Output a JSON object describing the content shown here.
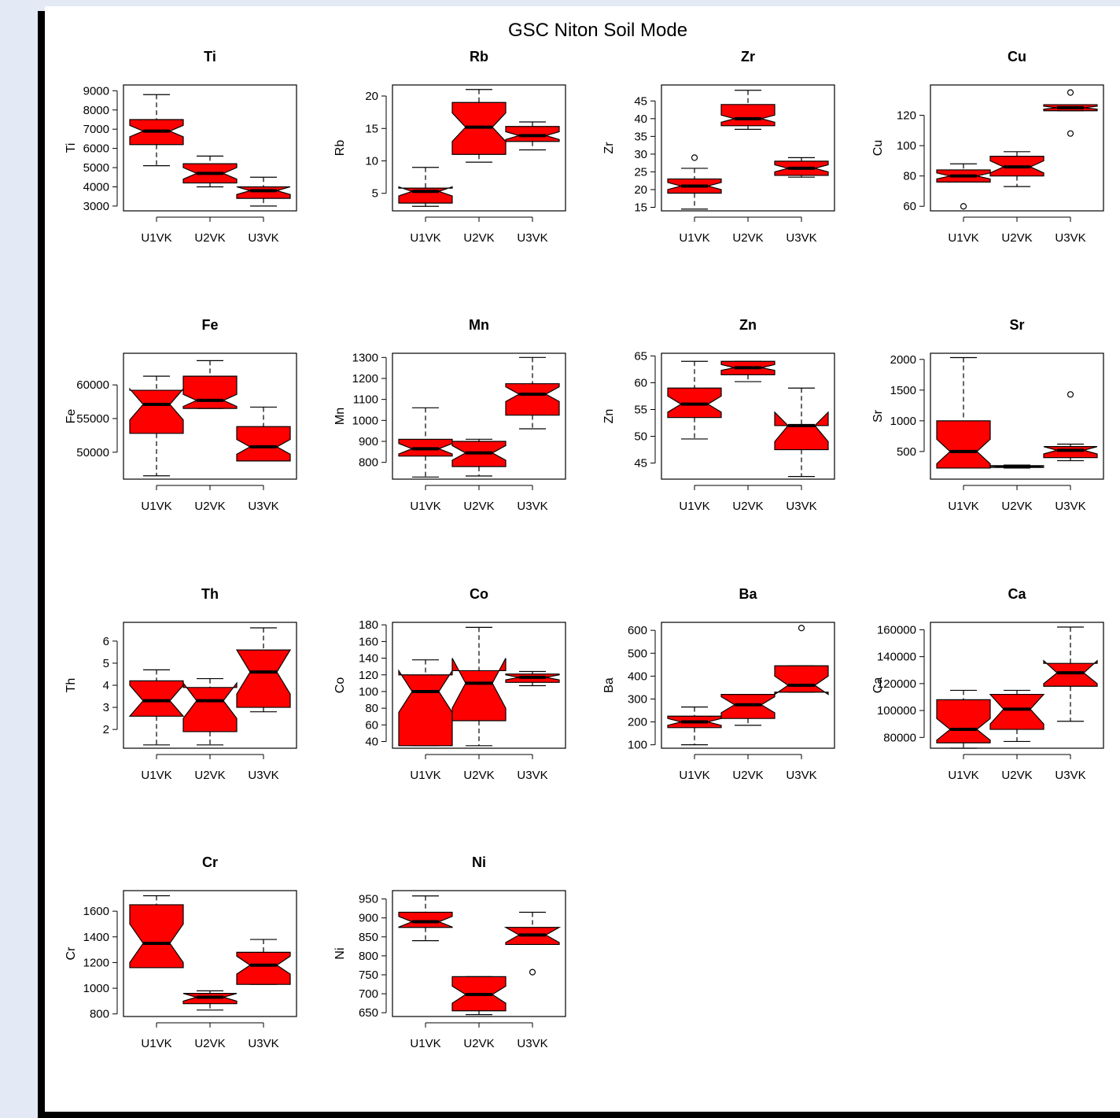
{
  "title": "GSC Niton Soil Mode",
  "box_fill": "#ff0000",
  "chart_data": [
    {
      "type": "boxplot",
      "title": "Ti",
      "ylabel": "Ti",
      "categories": [
        "U1VK",
        "U2VK",
        "U3VK"
      ],
      "ylim": [
        2750,
        9300
      ],
      "yticks": [
        3000,
        4000,
        5000,
        6000,
        7000,
        8000,
        9000
      ],
      "boxes": [
        {
          "min": 5100,
          "q1": 6200,
          "median": 6900,
          "q3": 7500,
          "max": 8800,
          "notch": [
            6600,
            7200
          ],
          "outliers": []
        },
        {
          "min": 4000,
          "q1": 4200,
          "median": 4700,
          "q3": 5200,
          "max": 5600,
          "notch": [
            4400,
            5000
          ],
          "outliers": []
        },
        {
          "min": 3000,
          "q1": 3400,
          "median": 3800,
          "q3": 4000,
          "max": 4500,
          "notch": [
            3600,
            4000
          ],
          "outliers": []
        }
      ]
    },
    {
      "type": "boxplot",
      "title": "Rb",
      "ylabel": "Rb",
      "categories": [
        "U1VK",
        "U2VK",
        "U3VK"
      ],
      "ylim": [
        2.3,
        21.7
      ],
      "yticks": [
        5,
        10,
        15,
        20
      ],
      "boxes": [
        {
          "min": 3,
          "q1": 3.5,
          "median": 5.3,
          "q3": 5.8,
          "max": 9,
          "notch": [
            4.6,
            6.0
          ],
          "outliers": []
        },
        {
          "min": 9.8,
          "q1": 11,
          "median": 15.2,
          "q3": 19,
          "max": 21,
          "notch": [
            13,
            17.4
          ],
          "outliers": []
        },
        {
          "min": 11.7,
          "q1": 13,
          "median": 13.9,
          "q3": 15.3,
          "max": 16,
          "notch": [
            13.3,
            14.5
          ],
          "outliers": []
        }
      ]
    },
    {
      "type": "boxplot",
      "title": "Zr",
      "ylabel": "Zr",
      "categories": [
        "U1VK",
        "U2VK",
        "U3VK"
      ],
      "ylim": [
        14,
        49.5
      ],
      "yticks": [
        15,
        20,
        25,
        30,
        35,
        40,
        45
      ],
      "boxes": [
        {
          "min": 14.5,
          "q1": 19,
          "median": 21,
          "q3": 23,
          "max": 26,
          "notch": [
            20,
            22
          ],
          "outliers": [
            29
          ]
        },
        {
          "min": 37,
          "q1": 38,
          "median": 40,
          "q3": 44,
          "max": 48,
          "notch": [
            39,
            41
          ],
          "outliers": []
        },
        {
          "min": 23.5,
          "q1": 24,
          "median": 26,
          "q3": 28,
          "max": 29,
          "notch": [
            25,
            27
          ],
          "outliers": []
        }
      ]
    },
    {
      "type": "boxplot",
      "title": "Cu",
      "ylabel": "Cu",
      "categories": [
        "U1VK",
        "U2VK",
        "U3VK"
      ],
      "ylim": [
        57,
        140
      ],
      "yticks": [
        60,
        80,
        100,
        120
      ],
      "boxes": [
        {
          "min": 76,
          "q1": 76,
          "median": 80,
          "q3": 84,
          "max": 88,
          "notch": [
            78,
            82
          ],
          "outliers": [
            60
          ]
        },
        {
          "min": 73,
          "q1": 80,
          "median": 86,
          "q3": 93,
          "max": 96,
          "notch": [
            82,
            90
          ],
          "outliers": []
        },
        {
          "min": 123,
          "q1": 123,
          "median": 125,
          "q3": 127,
          "max": 127,
          "notch": [
            124,
            126
          ],
          "outliers": [
            135,
            108
          ]
        }
      ]
    },
    {
      "type": "boxplot",
      "title": "Fe",
      "ylabel": "Fe",
      "categories": [
        "U1VK",
        "U2VK",
        "U3VK"
      ],
      "ylim": [
        46000,
        64700
      ],
      "yticks": [
        50000,
        55000,
        60000
      ],
      "boxes": [
        {
          "min": 46500,
          "q1": 52800,
          "median": 57100,
          "q3": 59200,
          "max": 61300,
          "notch": [
            54800,
            59400
          ],
          "outliers": []
        },
        {
          "min": 56500,
          "q1": 56500,
          "median": 57700,
          "q3": 61300,
          "max": 63600,
          "notch": [
            56800,
            58600
          ],
          "outliers": []
        },
        {
          "min": 48700,
          "q1": 48700,
          "median": 50800,
          "q3": 53800,
          "max": 56700,
          "notch": [
            49700,
            51900
          ],
          "outliers": []
        }
      ]
    },
    {
      "type": "boxplot",
      "title": "Mn",
      "ylabel": "Mn",
      "categories": [
        "U1VK",
        "U2VK",
        "U3VK"
      ],
      "ylim": [
        720,
        1320
      ],
      "yticks": [
        800,
        900,
        1000,
        1100,
        1200,
        1300
      ],
      "boxes": [
        {
          "min": 730,
          "q1": 830,
          "median": 865,
          "q3": 910,
          "max": 1060,
          "notch": [
            840,
            890
          ],
          "outliers": []
        },
        {
          "min": 735,
          "q1": 780,
          "median": 845,
          "q3": 900,
          "max": 910,
          "notch": [
            810,
            880
          ],
          "outliers": []
        },
        {
          "min": 960,
          "q1": 1025,
          "median": 1125,
          "q3": 1175,
          "max": 1300,
          "notch": [
            1090,
            1160
          ],
          "outliers": []
        }
      ]
    },
    {
      "type": "boxplot",
      "title": "Zn",
      "ylabel": "Zn",
      "categories": [
        "U1VK",
        "U2VK",
        "U3VK"
      ],
      "ylim": [
        42,
        65.5
      ],
      "yticks": [
        45,
        50,
        55,
        60,
        65
      ],
      "boxes": [
        {
          "min": 49.5,
          "q1": 53.5,
          "median": 56,
          "q3": 59,
          "max": 64,
          "notch": [
            54.5,
            57.5
          ],
          "outliers": []
        },
        {
          "min": 60.2,
          "q1": 61.5,
          "median": 62.8,
          "q3": 64,
          "max": 64,
          "notch": [
            62.3,
            63.4
          ],
          "outliers": []
        },
        {
          "min": 42.5,
          "q1": 47.5,
          "median": 52,
          "q3": 52,
          "max": 59,
          "notch": [
            49,
            54.5
          ],
          "outliers": []
        }
      ]
    },
    {
      "type": "boxplot",
      "title": "Sr",
      "ylabel": "Sr",
      "categories": [
        "U1VK",
        "U2VK",
        "U3VK"
      ],
      "ylim": [
        50,
        2100
      ],
      "yticks": [
        500,
        1000,
        1500,
        2000
      ],
      "boxes": [
        {
          "min": 230,
          "q1": 230,
          "median": 500,
          "q3": 1000,
          "max": 2030,
          "notch": [
            300,
            700
          ],
          "outliers": []
        },
        {
          "min": 230,
          "q1": 240,
          "median": 255,
          "q3": 270,
          "max": 280,
          "notch": [
            245,
            265
          ],
          "outliers": []
        },
        {
          "min": 350,
          "q1": 400,
          "median": 520,
          "q3": 580,
          "max": 620,
          "notch": [
            460,
            580
          ],
          "outliers": [
            1430
          ]
        }
      ]
    },
    {
      "type": "boxplot",
      "title": "Th",
      "ylabel": "Th",
      "categories": [
        "U1VK",
        "U2VK",
        "U3VK"
      ],
      "ylim": [
        1.15,
        6.85
      ],
      "yticks": [
        2,
        3,
        4,
        5,
        6
      ],
      "boxes": [
        {
          "min": 1.3,
          "q1": 2.6,
          "median": 3.3,
          "q3": 4.2,
          "max": 4.7,
          "notch": [
            2.6,
            4.0
          ],
          "outliers": []
        },
        {
          "min": 1.3,
          "q1": 1.9,
          "median": 3.3,
          "q3": 3.9,
          "max": 4.3,
          "notch": [
            2.5,
            4.1
          ],
          "outliers": []
        },
        {
          "min": 2.8,
          "q1": 3.0,
          "median": 4.6,
          "q3": 5.6,
          "max": 6.6,
          "notch": [
            3.6,
            5.6
          ],
          "outliers": []
        }
      ]
    },
    {
      "type": "boxplot",
      "title": "Co",
      "ylabel": "Co",
      "categories": [
        "U1VK",
        "U2VK",
        "U3VK"
      ],
      "ylim": [
        32,
        183
      ],
      "yticks": [
        40,
        60,
        80,
        100,
        120,
        140,
        160,
        180
      ],
      "boxes": [
        {
          "min": 35,
          "q1": 35,
          "median": 100,
          "q3": 120,
          "max": 138,
          "notch": [
            75,
            125
          ],
          "outliers": []
        },
        {
          "min": 35,
          "q1": 65,
          "median": 110,
          "q3": 125,
          "max": 177,
          "notch": [
            80,
            140
          ],
          "outliers": []
        },
        {
          "min": 107,
          "q1": 111,
          "median": 117,
          "q3": 121,
          "max": 124,
          "notch": [
            114,
            120
          ],
          "outliers": []
        }
      ]
    },
    {
      "type": "boxplot",
      "title": "Ba",
      "ylabel": "Ba",
      "categories": [
        "U1VK",
        "U2VK",
        "U3VK"
      ],
      "ylim": [
        85,
        635
      ],
      "yticks": [
        100,
        200,
        300,
        400,
        500,
        600
      ],
      "boxes": [
        {
          "min": 100,
          "q1": 175,
          "median": 200,
          "q3": 225,
          "max": 265,
          "notch": [
            185,
            215
          ],
          "outliers": []
        },
        {
          "min": 185,
          "q1": 215,
          "median": 275,
          "q3": 320,
          "max": 320,
          "notch": [
            240,
            310
          ],
          "outliers": []
        },
        {
          "min": 330,
          "q1": 330,
          "median": 360,
          "q3": 445,
          "max": 445,
          "notch": [
            320,
            400
          ],
          "outliers": [
            610
          ]
        }
      ]
    },
    {
      "type": "boxplot",
      "title": "Ca",
      "ylabel": "Ca",
      "categories": [
        "U1VK",
        "U2VK",
        "U3VK"
      ],
      "ylim": [
        72000,
        165500
      ],
      "yticks": [
        80000,
        100000,
        120000,
        140000,
        160000
      ],
      "boxes": [
        {
          "min": 72000,
          "q1": 76000,
          "median": 86000,
          "q3": 108000,
          "max": 115000,
          "notch": [
            78000,
            94000
          ],
          "outliers": []
        },
        {
          "min": 77000,
          "q1": 86000,
          "median": 101000,
          "q3": 112000,
          "max": 115000,
          "notch": [
            90000,
            112000
          ],
          "outliers": []
        },
        {
          "min": 92000,
          "q1": 118000,
          "median": 128000,
          "q3": 135000,
          "max": 162000,
          "notch": [
            120000,
            137000
          ],
          "outliers": []
        }
      ]
    },
    {
      "type": "boxplot",
      "title": "Cr",
      "ylabel": "Cr",
      "categories": [
        "U1VK",
        "U2VK",
        "U3VK"
      ],
      "ylim": [
        780,
        1760
      ],
      "yticks": [
        800,
        1000,
        1200,
        1400,
        1600
      ],
      "boxes": [
        {
          "min": 1160,
          "q1": 1160,
          "median": 1350,
          "q3": 1650,
          "max": 1720,
          "notch": [
            1200,
            1500
          ],
          "outliers": []
        },
        {
          "min": 830,
          "q1": 880,
          "median": 930,
          "q3": 960,
          "max": 980,
          "notch": [
            900,
            960
          ],
          "outliers": []
        },
        {
          "min": 1030,
          "q1": 1030,
          "median": 1180,
          "q3": 1280,
          "max": 1380,
          "notch": [
            1110,
            1250
          ],
          "outliers": []
        }
      ]
    },
    {
      "type": "boxplot",
      "title": "Ni",
      "ylabel": "Ni",
      "categories": [
        "U1VK",
        "U2VK",
        "U3VK"
      ],
      "ylim": [
        640,
        972
      ],
      "yticks": [
        650,
        700,
        750,
        800,
        850,
        900,
        950
      ],
      "boxes": [
        {
          "min": 840,
          "q1": 875,
          "median": 890,
          "q3": 915,
          "max": 958,
          "notch": [
            876,
            904
          ],
          "outliers": []
        },
        {
          "min": 645,
          "q1": 655,
          "median": 698,
          "q3": 745,
          "max": 745,
          "notch": [
            675,
            720
          ],
          "outliers": []
        },
        {
          "min": 830,
          "q1": 830,
          "median": 855,
          "q3": 875,
          "max": 915,
          "notch": [
            835,
            875
          ],
          "outliers": [
            757
          ]
        }
      ]
    }
  ]
}
